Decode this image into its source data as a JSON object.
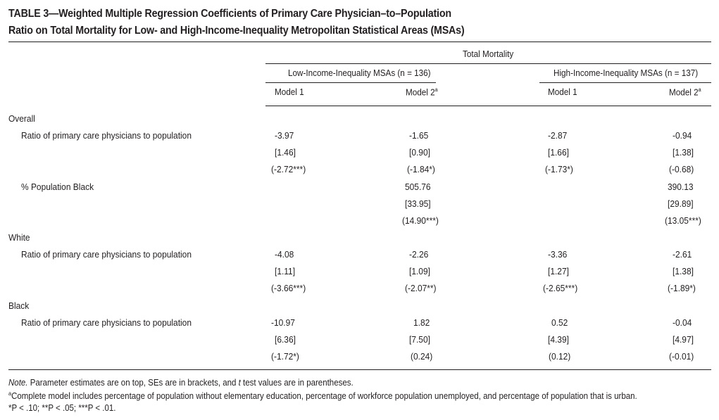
{
  "title": {
    "line1": "TABLE 3—Weighted Multiple Regression Coefficients of Primary Care Physician–to–Population",
    "line2": "Ratio on Total Mortality for Low- and High-Income-Inequality Metropolitan Statistical Areas (MSAs)"
  },
  "header": {
    "top": "Total Mortality",
    "group_low": "Low-Income-Inequality MSAs (n = 136)",
    "group_high": "High-Income-Inequality MSAs (n = 137)",
    "model1": "Model 1",
    "model2": "Model 2",
    "model2_sup": "a"
  },
  "rows": [
    {
      "label": "Overall",
      "type": "section",
      "c1": "",
      "c2": "",
      "c3": "",
      "c4": ""
    },
    {
      "label": "Ratio of primary care physicians to population",
      "type": "sub",
      "c1": "-3.97",
      "c2": "-1.65",
      "c3": "-2.87",
      "c4": "-0.94"
    },
    {
      "label": "",
      "type": "sub",
      "c1": "[1.46]",
      "c2": "[0.90]",
      "c3": "[1.66]",
      "c4": "[1.38]"
    },
    {
      "label": "",
      "type": "sub",
      "c1": "(-2.72***)",
      "c2": "(-1.84*)",
      "c3": "(-1.73*)",
      "c4": "(-0.68)"
    },
    {
      "label": "% Population Black",
      "type": "sub",
      "c1": "",
      "c2": "505.76",
      "c3": "",
      "c4": "390.13"
    },
    {
      "label": "",
      "type": "sub",
      "c1": "",
      "c2": "[33.95]",
      "c3": "",
      "c4": "[29.89]"
    },
    {
      "label": "",
      "type": "sub",
      "c1": "",
      "c2": "(14.90***)",
      "c3": "",
      "c4": "(13.05***)"
    },
    {
      "label": "White",
      "type": "section",
      "c1": "",
      "c2": "",
      "c3": "",
      "c4": ""
    },
    {
      "label": "Ratio of primary care physicians to population",
      "type": "sub",
      "c1": "-4.08",
      "c2": "-2.26",
      "c3": "-3.36",
      "c4": "-2.61"
    },
    {
      "label": "",
      "type": "sub",
      "c1": "[1.11]",
      "c2": "[1.09]",
      "c3": "[1.27]",
      "c4": "[1.38]"
    },
    {
      "label": "",
      "type": "sub",
      "c1": "(-3.66***)",
      "c2": "(-2.07**)",
      "c3": "(-2.65***)",
      "c4": "(-1.89*)"
    },
    {
      "label": "Black",
      "type": "section",
      "c1": "",
      "c2": "",
      "c3": "",
      "c4": ""
    },
    {
      "label": "Ratio of primary care physicians to population",
      "type": "sub",
      "c1": "-10.97",
      "c2": "1.82",
      "c3": "0.52",
      "c4": "-0.04"
    },
    {
      "label": "",
      "type": "sub",
      "c1": "[6.36]",
      "c2": "[7.50]",
      "c3": "[4.39]",
      "c4": "[4.97]"
    },
    {
      "label": "",
      "type": "sub",
      "c1": "(-1.72*)",
      "c2": "(0.24)",
      "c3": "(0.12)",
      "c4": "(-0.01)"
    }
  ],
  "notes": {
    "note_prefix": "Note.",
    "note_a": " Parameter estimates are on top, SEs are in brackets, and ",
    "note_t": "t",
    "note_b": " test values are in parentheses.",
    "footnote_sup": "a",
    "footnote_a": "Complete model includes percentage of population without elementary education, percentage of workforce population unemployed, and percentage of population that is urban.",
    "sig": "*P < .10; **P < .05; ***P < .01."
  }
}
